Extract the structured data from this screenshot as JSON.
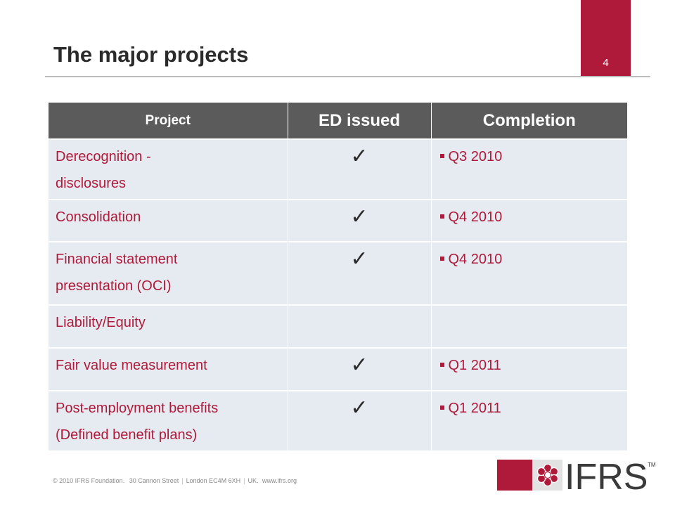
{
  "slide": {
    "title": "The major projects",
    "page_number": "4"
  },
  "table": {
    "headers": [
      "Project",
      "ED issued",
      "Completion"
    ],
    "rows": [
      {
        "project_line1": "Derecognition -",
        "project_line2": "disclosures",
        "ed_issued": true,
        "completion": "Q3 2010"
      },
      {
        "project_line1": "Consolidation",
        "project_line2": "",
        "ed_issued": true,
        "completion": "Q4 2010"
      },
      {
        "project_line1": "Financial statement",
        "project_line2": "presentation (OCI)",
        "ed_issued": true,
        "completion": "Q4 2010"
      },
      {
        "project_line1": "Liability/Equity",
        "project_line2": "",
        "ed_issued": false,
        "completion": ""
      },
      {
        "project_line1": "Fair value measurement",
        "project_line2": "",
        "ed_issued": true,
        "completion": "Q1 2011"
      },
      {
        "project_line1": "Post-employment benefits",
        "project_line2": "(Defined benefit plans)",
        "ed_issued": true,
        "completion": "Q1 2011"
      }
    ],
    "check_icon": "checkmark-icon"
  },
  "footer": {
    "copyright": "© 2010 IFRS Foundation.",
    "address": "30 Cannon Street",
    "city": "London EC4M 6XH",
    "country": "UK.",
    "website": "www.ifrs.org"
  },
  "logo": {
    "text": "IFRS",
    "trademark": "TM",
    "icon": "ifrs-flower-icon"
  },
  "colors": {
    "accent": "#b01a3a",
    "header_bg": "#5b5b5b",
    "row_bg": "#e6ebf1",
    "text_dark": "#2b2b2b"
  }
}
